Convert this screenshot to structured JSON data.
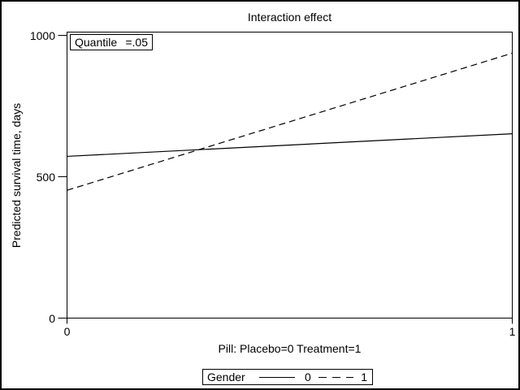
{
  "chart_data": {
    "type": "line",
    "title": "Interaction effect",
    "xlabel": "Pill: Placebo=0 Treatment=1",
    "ylabel": "Predicted survival time, days",
    "x": [
      0,
      1
    ],
    "series": [
      {
        "name": "0",
        "style": "solid",
        "values": [
          572,
          652
        ]
      },
      {
        "name": "1",
        "style": "dashed",
        "values": [
          452,
          937
        ]
      }
    ],
    "xlim": [
      0,
      1
    ],
    "ylim": [
      0,
      1000
    ],
    "xticks": [
      0,
      1
    ],
    "yticks": [
      0,
      500,
      1000
    ],
    "grid": false,
    "legend": {
      "title": "Gender",
      "position": "bottom",
      "entries": [
        "0",
        "1"
      ]
    },
    "annotation": "Quantile =.05"
  },
  "annotation_box": {
    "label": "Quantile",
    "value": "=.05"
  },
  "legend": {
    "title": "Gender",
    "entries": [
      {
        "label": "0",
        "style": "solid"
      },
      {
        "label": "1",
        "style": "dashed"
      }
    ]
  },
  "colors": {
    "line": "#000000",
    "background": "#ffffff",
    "border": "#000000"
  }
}
